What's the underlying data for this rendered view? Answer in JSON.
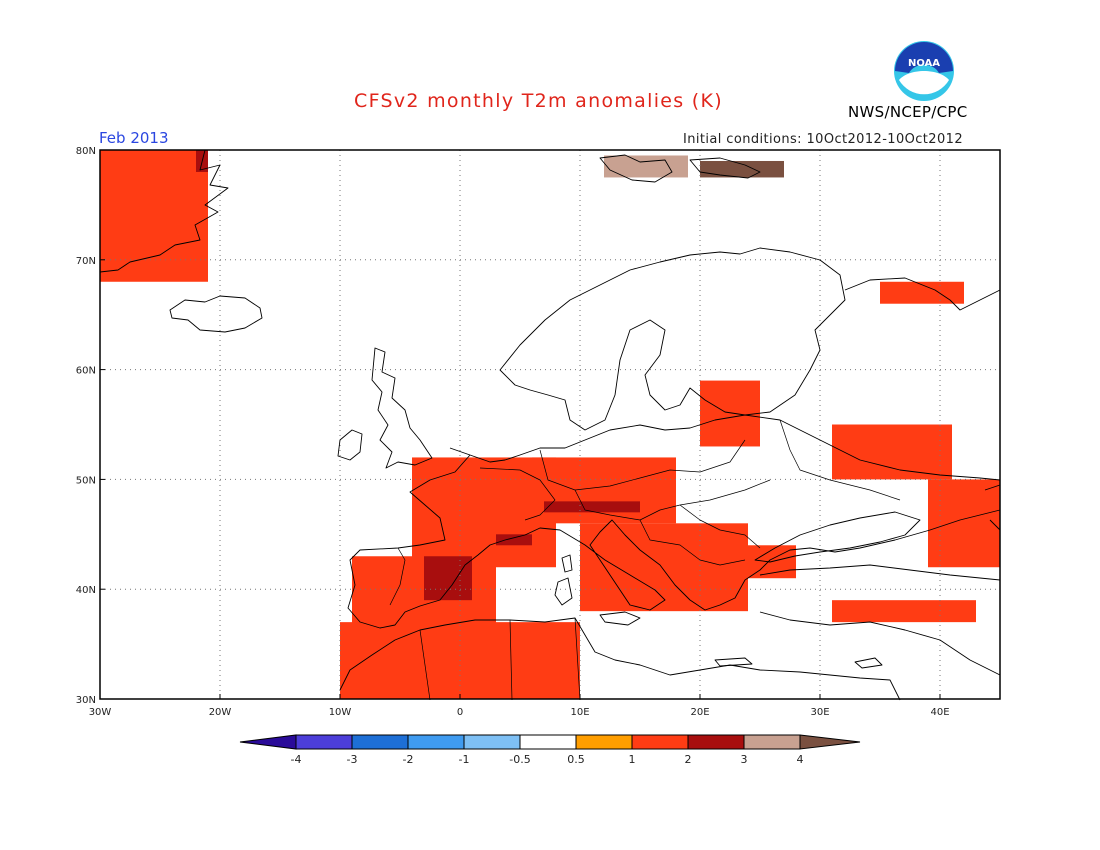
{
  "header": {
    "title": "CFSv2 monthly T2m anomalies (K)",
    "agency": "NWS/NCEP/CPC",
    "valid_month": "Feb 2013",
    "initial_conditions": "Initial conditions: 10Oct2012-10Oct2012",
    "logo_text": "NOAA"
  },
  "map": {
    "lon_range": [
      -30,
      45
    ],
    "lat_range": [
      30,
      80
    ],
    "lon_ticks": [
      {
        "value": -30,
        "label": "30W"
      },
      {
        "value": -20,
        "label": "20W"
      },
      {
        "value": -10,
        "label": "10W"
      },
      {
        "value": 0,
        "label": "0"
      },
      {
        "value": 10,
        "label": "10E"
      },
      {
        "value": 20,
        "label": "20E"
      },
      {
        "value": 30,
        "label": "30E"
      },
      {
        "value": 40,
        "label": "40E"
      }
    ],
    "lat_ticks": [
      {
        "value": 30,
        "label": "30N"
      },
      {
        "value": 40,
        "label": "40N"
      },
      {
        "value": 50,
        "label": "50N"
      },
      {
        "value": 60,
        "label": "60N"
      },
      {
        "value": 70,
        "label": "70N"
      },
      {
        "value": 80,
        "label": "80N"
      }
    ],
    "gridlines": "dotted",
    "anomaly_regions": [
      {
        "category": "1",
        "area": "Greenland east coast",
        "lon": [
          -30,
          -21
        ],
        "lat": [
          68,
          80
        ]
      },
      {
        "category": "2",
        "area": "NE Greenland",
        "lon": [
          -22,
          -21
        ],
        "lat": [
          78,
          80
        ]
      },
      {
        "category": "3",
        "area": "Svalbard",
        "lon": [
          12,
          19
        ],
        "lat": [
          77.5,
          79.5
        ]
      },
      {
        "category": "4",
        "area": "Svalbard east / Franz Josef",
        "lon": [
          20,
          27
        ],
        "lat": [
          77.5,
          79
        ]
      },
      {
        "category": "1",
        "area": "Kola Peninsula",
        "lon": [
          35,
          42
        ],
        "lat": [
          66,
          68
        ]
      },
      {
        "category": "1",
        "area": "Baltic states",
        "lon": [
          20,
          25
        ],
        "lat": [
          53,
          59
        ]
      },
      {
        "category": "1",
        "area": "Western Russia",
        "lon": [
          31,
          41
        ],
        "lat": [
          50,
          55
        ]
      },
      {
        "category": "1",
        "area": "Caspian region",
        "lon": [
          39,
          45
        ],
        "lat": [
          42,
          50
        ]
      },
      {
        "category": "1",
        "area": "England and Low Countries",
        "lon": [
          -4,
          8
        ],
        "lat": [
          48,
          52
        ]
      },
      {
        "category": "1",
        "area": "France",
        "lon": [
          -4,
          8
        ],
        "lat": [
          42,
          49
        ]
      },
      {
        "category": "1",
        "area": "Germany and Central Europe",
        "lon": [
          6,
          18
        ],
        "lat": [
          46,
          52
        ]
      },
      {
        "category": "1",
        "area": "Italy and Balkans",
        "lon": [
          10,
          24
        ],
        "lat": [
          38,
          46
        ]
      },
      {
        "category": "1",
        "area": "Bulgaria",
        "lon": [
          23,
          28
        ],
        "lat": [
          41,
          44
        ]
      },
      {
        "category": "1",
        "area": "Iberian Peninsula",
        "lon": [
          -9,
          3
        ],
        "lat": [
          36,
          43
        ]
      },
      {
        "category": "2",
        "area": "Eastern Spain",
        "lon": [
          -3,
          1
        ],
        "lat": [
          39,
          43
        ]
      },
      {
        "category": "2",
        "area": "Southern France",
        "lon": [
          3,
          6
        ],
        "lat": [
          44,
          45
        ]
      },
      {
        "category": "2",
        "area": "Austria / Switzerland",
        "lon": [
          7,
          15
        ],
        "lat": [
          47,
          48
        ]
      },
      {
        "category": "1",
        "area": "Turkey",
        "lon": [
          31,
          43
        ],
        "lat": [
          37,
          39
        ]
      },
      {
        "category": "1",
        "area": "North Africa",
        "lon": [
          -10,
          10
        ],
        "lat": [
          30,
          37
        ]
      }
    ]
  },
  "colorbar": {
    "colors": [
      "#2a0b99",
      "#4c3ed9",
      "#1e6fd6",
      "#3f9bf0",
      "#7ec0f5",
      "#ffffff",
      "#ff9e00",
      "#ff3c14",
      "#a80e0e",
      "#c8a191",
      "#7a5040"
    ],
    "labels": [
      "-4",
      "-3",
      "-2",
      "-1",
      "-0.5",
      "0.5",
      "1",
      "2",
      "3",
      "4"
    ]
  }
}
